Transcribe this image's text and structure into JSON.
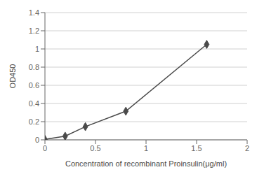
{
  "chart_data": {
    "type": "line",
    "x_label": "Concentration of  recombinant Proinsulin(μg/ml)",
    "y_label": "OD450",
    "x": [
      0,
      0.2,
      0.4,
      0.8,
      1.6
    ],
    "values": [
      0.005,
      0.04,
      0.145,
      0.315,
      1.05
    ],
    "color": "#4a4a4a",
    "marker": "diamond",
    "xlim": [
      0,
      2
    ],
    "xticks": [
      0,
      0.5,
      1.0,
      1.5,
      2.0
    ],
    "ylim": [
      0,
      1.4
    ],
    "yticks": [
      0,
      0.2,
      0.4,
      0.6,
      0.8,
      1.0,
      1.2,
      1.4
    ],
    "grid": true
  }
}
